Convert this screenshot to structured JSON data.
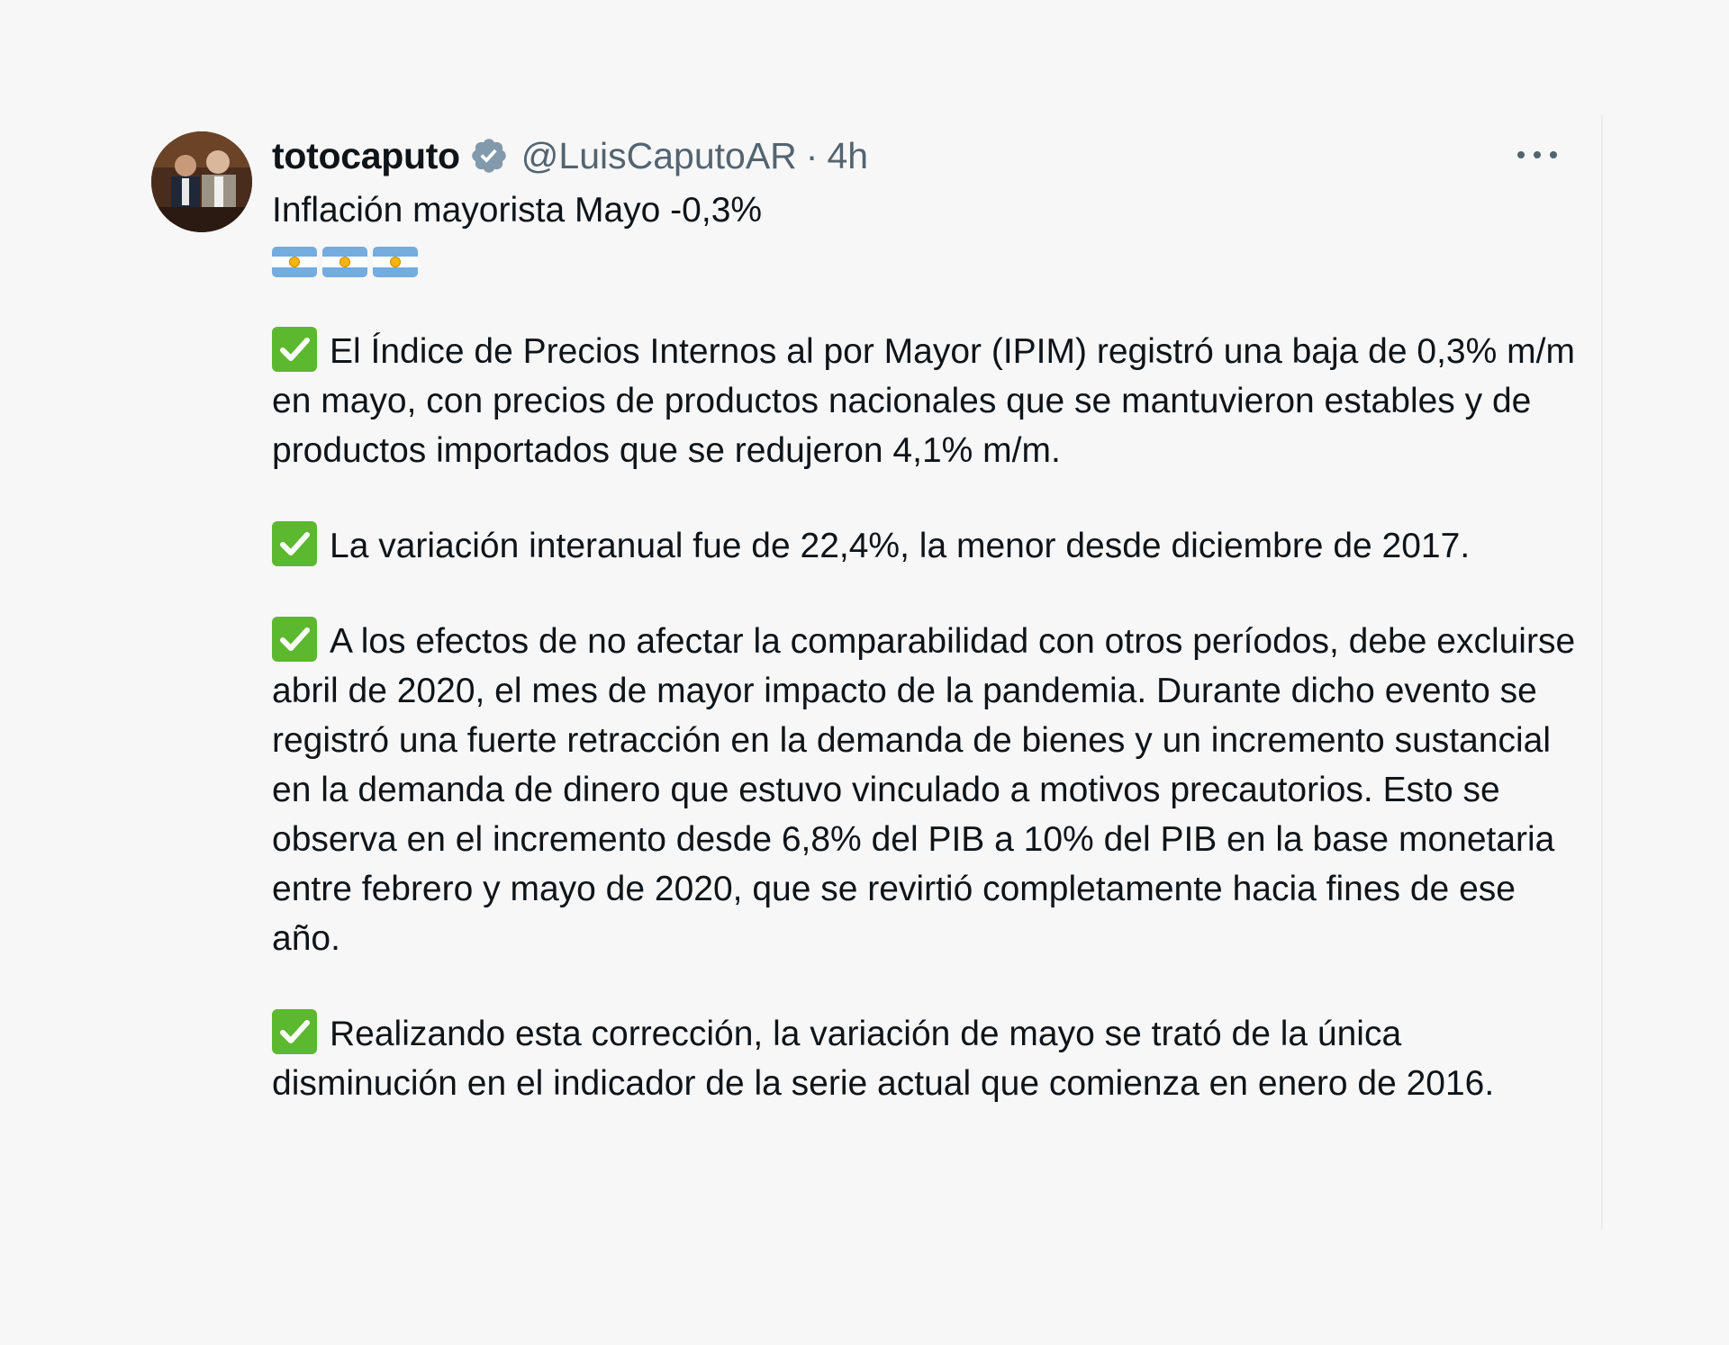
{
  "tweet": {
    "author_name": "totocaputo",
    "verified_icon": "verified-badge-icon",
    "handle": "@LuisCaputoAR",
    "separator": "·",
    "time": "4h",
    "more_icon": "more-options-icon",
    "headline": "Inflación mayorista Mayo -0,3%",
    "flags": [
      "argentina-flag-icon",
      "argentina-flag-icon",
      "argentina-flag-icon"
    ],
    "check_icon": "check-mark-icon",
    "paragraphs": [
      "El Índice de Precios Internos al por Mayor (IPIM) registró una baja de 0,3% m/m en mayo, con precios de productos nacionales que se mantuvieron estables y de productos importados que se redujeron 4,1% m/m.",
      "La variación interanual fue de 22,4%, la menor desde diciembre de 2017.",
      "A los efectos de no afectar la comparabilidad con otros períodos, debe excluirse abril de 2020, el mes de mayor impacto de la pandemia. Durante dicho evento se registró una fuerte retracción en la demanda de bienes y un incremento sustancial en la demanda de dinero que estuvo vinculado a motivos precautorios. Esto se observa en el incremento desde 6,8% del PIB a 10% del PIB en la base monetaria entre febrero y mayo de 2020, que se revirtió completamente hacia fines de ese año.",
      "Realizando esta corrección, la variación de mayo se trató de la única disminución en el indicador de la serie actual que comienza en enero de 2016."
    ]
  },
  "colors": {
    "text": "#0f1419",
    "secondary": "#536471",
    "verified": "#829aab",
    "check_bg": "#5cb82e",
    "flag_blue": "#74acdf",
    "background": "#f7f7f7"
  }
}
